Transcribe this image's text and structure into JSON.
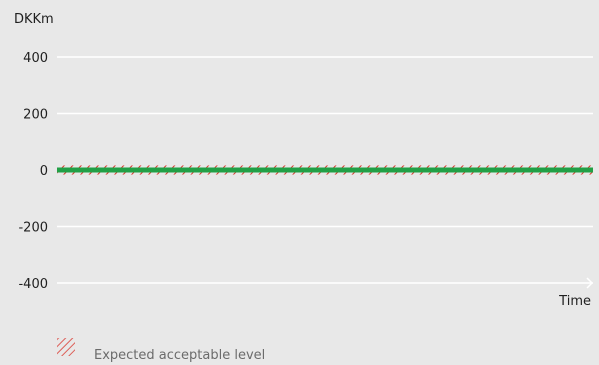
{
  "chart_data": {
    "type": "line",
    "ylabel": "DKKm",
    "xlabel": "Time",
    "ylim": [
      -400,
      400
    ],
    "yticks": [
      400,
      200,
      0,
      -200,
      -400
    ],
    "grid": true,
    "legend_placement": "bottom-left",
    "series": [
      {
        "name": "Expected acceptable level",
        "style": "hatched-band",
        "y_low": -2,
        "y_high": 2,
        "color": "#d9342b"
      },
      {
        "style": "line",
        "x": [
          0,
          1
        ],
        "y": [
          0,
          0
        ],
        "color": "#22a046"
      }
    ],
    "colors": {
      "background": "#e8e8e8",
      "grid": "#ffffff",
      "series_line": "#22a046",
      "band_hatch": "#d9342b",
      "legend_text": "#6b6b6b",
      "text": "#1f1f1f"
    }
  }
}
